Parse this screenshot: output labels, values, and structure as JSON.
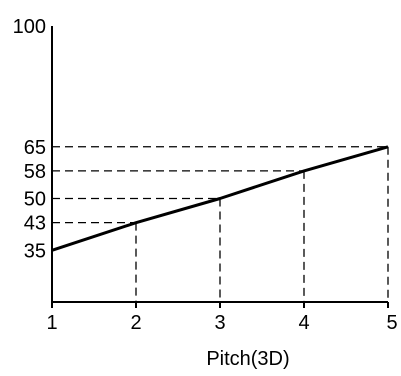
{
  "chart_data": {
    "type": "line",
    "title": "",
    "xlabel": "Pitch(3D)",
    "ylabel": "",
    "x": [
      1,
      2,
      3,
      4,
      5
    ],
    "series": [
      {
        "values": [
          35,
          43,
          50,
          58,
          65
        ]
      }
    ],
    "xticks": [
      "1",
      "2",
      "3",
      "4",
      "5"
    ],
    "yticks": [
      {
        "value": 35,
        "label": "35"
      },
      {
        "value": 43,
        "label": "43"
      },
      {
        "value": 50,
        "label": "50"
      },
      {
        "value": 58,
        "label": "58"
      },
      {
        "value": 65,
        "label": "65"
      },
      {
        "value": 100,
        "label": "100"
      }
    ],
    "xlim": [
      1,
      5
    ],
    "ylim": [
      20,
      100
    ],
    "guide_lines": "dashed",
    "grid": false,
    "legend": "none",
    "colors": {
      "line": "#000000",
      "axis": "#000000",
      "guide": "#000000"
    }
  }
}
